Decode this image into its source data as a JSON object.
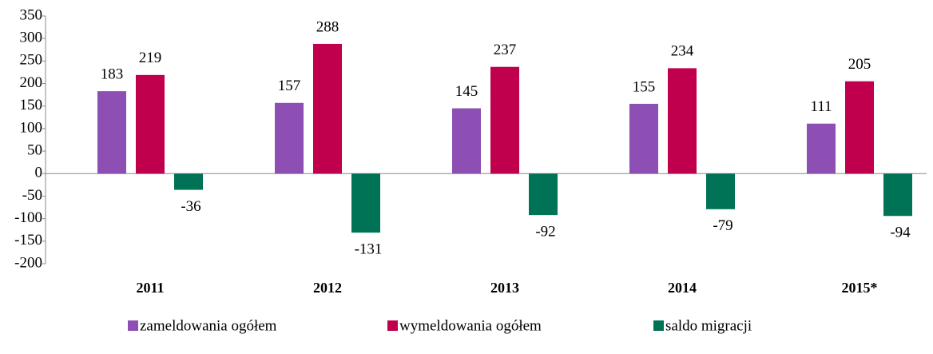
{
  "chart_data": {
    "type": "bar",
    "categories": [
      "2011",
      "2012",
      "2013",
      "2014",
      "2015*"
    ],
    "series": [
      {
        "name": "zameldowania ogółem",
        "color": "#8e4fb5",
        "values": [
          183,
          157,
          145,
          155,
          111
        ]
      },
      {
        "name": "wymeldowania ogółem",
        "color": "#c0004d",
        "values": [
          219,
          288,
          237,
          234,
          205
        ]
      },
      {
        "name": "saldo migracji",
        "color": "#007255",
        "values": [
          -36,
          -131,
          -92,
          -79,
          -94
        ]
      }
    ],
    "ylim": [
      -200,
      350
    ],
    "yticks": [
      -200,
      -150,
      -100,
      -50,
      0,
      50,
      100,
      150,
      200,
      250,
      300,
      350
    ],
    "legend": "bottom"
  }
}
